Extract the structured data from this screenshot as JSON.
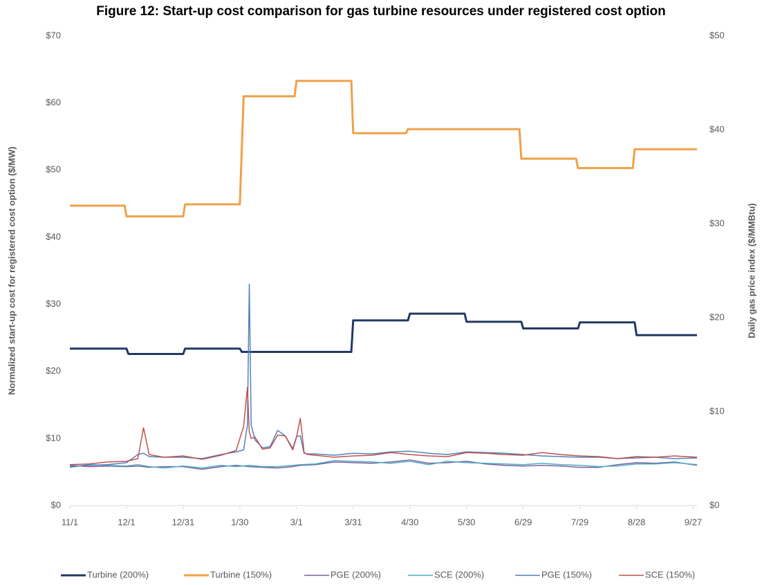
{
  "chart_data": {
    "type": "line",
    "title": "Figure 12: Start-up cost comparison for gas turbine resources under registered cost option",
    "y_label": "Normalized start-up cost for registered cost option ($/MW)",
    "y2_label": "Daily gas price index ($/MMBtu)",
    "xlim": [
      0,
      332
    ],
    "xticks": [
      {
        "value": 0,
        "label": "11/1"
      },
      {
        "value": 30,
        "label": "12/1"
      },
      {
        "value": 60,
        "label": "12/31"
      },
      {
        "value": 90,
        "label": "1/30"
      },
      {
        "value": 120,
        "label": "3/1"
      },
      {
        "value": 150,
        "label": "3/31"
      },
      {
        "value": 180,
        "label": "4/30"
      },
      {
        "value": 210,
        "label": "5/30"
      },
      {
        "value": 240,
        "label": "6/29"
      },
      {
        "value": 270,
        "label": "7/29"
      },
      {
        "value": 300,
        "label": "8/28"
      },
      {
        "value": 330,
        "label": "9/27"
      }
    ],
    "ylim": [
      0,
      70
    ],
    "yticks": [
      {
        "value": 0,
        "label": "$0"
      },
      {
        "value": 10,
        "label": "$10"
      },
      {
        "value": 20,
        "label": "$20"
      },
      {
        "value": 30,
        "label": "$30"
      },
      {
        "value": 40,
        "label": "$40"
      },
      {
        "value": 50,
        "label": "$50"
      },
      {
        "value": 60,
        "label": "$60"
      },
      {
        "value": 70,
        "label": "$70"
      }
    ],
    "y2lim": [
      0,
      50
    ],
    "y2ticks": [
      {
        "value": 0,
        "label": "$0"
      },
      {
        "value": 10,
        "label": "$10"
      },
      {
        "value": 20,
        "label": "$20"
      },
      {
        "value": 30,
        "label": "$30"
      },
      {
        "value": 40,
        "label": "$40"
      },
      {
        "value": 50,
        "label": "$50"
      }
    ],
    "grid": false,
    "legend": "bottom",
    "series": [
      {
        "name": "Turbine (200%)",
        "color": "#203864",
        "width": 3,
        "x": [
          0,
          30,
          31,
          60,
          61,
          90,
          91,
          149,
          150,
          179,
          180,
          209,
          210,
          239,
          240,
          269,
          270,
          299,
          300,
          332
        ],
        "values": [
          23.4,
          23.4,
          22.6,
          22.6,
          23.4,
          23.4,
          22.9,
          22.9,
          27.6,
          27.6,
          28.6,
          28.6,
          27.4,
          27.4,
          26.4,
          26.4,
          27.3,
          27.3,
          25.4,
          25.4
        ]
      },
      {
        "name": "Turbine (150%)",
        "color": "#f0a048",
        "width": 3,
        "x": [
          0,
          29,
          30,
          60,
          61,
          90,
          92,
          119,
          120,
          149,
          150,
          178,
          179,
          238,
          239,
          268,
          269,
          298,
          299,
          332
        ],
        "values": [
          44.7,
          44.7,
          43.1,
          43.1,
          44.9,
          44.9,
          61.0,
          61.0,
          63.3,
          63.3,
          55.5,
          55.5,
          56.1,
          56.1,
          51.7,
          51.7,
          50.3,
          50.3,
          53.1,
          53.1
        ]
      },
      {
        "name": "PGE (200%)",
        "color": "#7e5e9c",
        "width": 1.5,
        "x": [
          0,
          10,
          20,
          30,
          36,
          42,
          50,
          60,
          70,
          80,
          88,
          95,
          102,
          110,
          118,
          122,
          130,
          140,
          150,
          160,
          170,
          180,
          190,
          200,
          210,
          220,
          230,
          240,
          250,
          260,
          270,
          280,
          290,
          300,
          310,
          320,
          332
        ],
        "values": [
          6.0,
          5.8,
          5.9,
          5.8,
          5.9,
          5.7,
          5.8,
          5.8,
          5.4,
          5.8,
          6.0,
          5.8,
          5.7,
          5.6,
          5.8,
          6.0,
          6.1,
          6.5,
          6.4,
          6.3,
          6.5,
          6.8,
          6.3,
          6.4,
          6.6,
          6.2,
          6.0,
          5.9,
          6.0,
          5.9,
          5.7,
          5.7,
          6.1,
          6.4,
          6.3,
          6.5,
          6.0
        ]
      },
      {
        "name": "SCE (200%)",
        "color": "#4bacc6",
        "width": 1.5,
        "x": [
          0,
          10,
          20,
          30,
          36,
          42,
          50,
          60,
          70,
          80,
          88,
          95,
          102,
          110,
          118,
          122,
          130,
          140,
          150,
          160,
          170,
          180,
          190,
          200,
          210,
          220,
          230,
          240,
          250,
          260,
          270,
          280,
          290,
          300,
          310,
          320,
          332
        ],
        "values": [
          5.7,
          6.1,
          6.0,
          5.9,
          6.1,
          5.8,
          5.6,
          5.9,
          5.6,
          6.0,
          5.8,
          6.0,
          5.8,
          5.8,
          6.0,
          6.1,
          6.2,
          6.7,
          6.6,
          6.5,
          6.3,
          6.6,
          6.1,
          6.6,
          6.4,
          6.3,
          6.2,
          6.1,
          6.3,
          6.1,
          6.0,
          5.8,
          5.9,
          6.2,
          6.2,
          6.4,
          6.1
        ]
      },
      {
        "name": "PGE (150%)",
        "color": "#4f81bd",
        "width": 1.5,
        "x": [
          0,
          10,
          20,
          30,
          36,
          39,
          42,
          50,
          60,
          70,
          80,
          88,
          92,
          94,
          95,
          96,
          98,
          102,
          106,
          110,
          114,
          118,
          120,
          122,
          124,
          126,
          130,
          140,
          150,
          160,
          170,
          180,
          190,
          200,
          210,
          220,
          230,
          240,
          250,
          260,
          270,
          280,
          290,
          300,
          310,
          320,
          332
        ],
        "values": [
          5.8,
          6.0,
          6.1,
          6.4,
          7.6,
          7.8,
          7.3,
          7.2,
          7.2,
          7.0,
          7.6,
          8.0,
          8.3,
          12,
          33,
          12,
          9.8,
          8.6,
          8.8,
          11.2,
          10.4,
          8.5,
          10.3,
          10.4,
          7.8,
          7.7,
          7.7,
          7.5,
          7.8,
          7.7,
          8.0,
          8.1,
          7.8,
          7.6,
          8.0,
          7.9,
          7.8,
          7.6,
          7.4,
          7.3,
          7.2,
          7.2,
          7.0,
          7.1,
          7.2,
          7.0,
          7.1
        ]
      },
      {
        "name": "SCE (150%)",
        "color": "#c0504d",
        "width": 1.5,
        "x": [
          0,
          10,
          20,
          30,
          36,
          39,
          42,
          50,
          60,
          70,
          80,
          88,
          92,
          94,
          95,
          96,
          98,
          102,
          106,
          110,
          114,
          118,
          120,
          122,
          124,
          126,
          130,
          140,
          150,
          160,
          170,
          180,
          190,
          200,
          210,
          220,
          230,
          240,
          250,
          260,
          270,
          280,
          290,
          300,
          310,
          320,
          332
        ],
        "values": [
          6.1,
          6.2,
          6.5,
          6.6,
          7.0,
          11.6,
          7.6,
          7.2,
          7.4,
          6.9,
          7.5,
          8.2,
          11.8,
          17.6,
          11,
          10,
          10.2,
          8.4,
          8.6,
          10.5,
          10.4,
          8.3,
          10.2,
          13,
          7.9,
          7.6,
          7.5,
          7.2,
          7.4,
          7.5,
          7.9,
          7.6,
          7.4,
          7.3,
          7.9,
          7.8,
          7.6,
          7.5,
          7.9,
          7.6,
          7.4,
          7.3,
          7.0,
          7.3,
          7.2,
          7.4,
          7.2
        ]
      }
    ]
  }
}
